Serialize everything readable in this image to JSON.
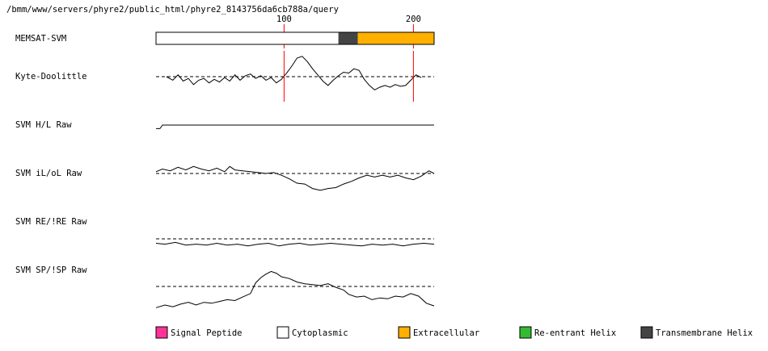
{
  "path_text": "/bmm/www/servers/phyre2/public_html/phyre2_8143756da6cb788a/query",
  "colors": {
    "signal": "#ff3399",
    "cytoplasmic": "#ffffff",
    "extracellular": "#ffb000",
    "reentrant": "#33bb33",
    "transmembrane": "#444444",
    "marker": "#ff0000",
    "line": "#000000"
  },
  "chart_data": {
    "type": "line",
    "sequence_length": 216,
    "ruler_ticks": [
      {
        "label": "100",
        "pos": 100
      },
      {
        "label": "200",
        "pos": 200
      }
    ],
    "memsat": {
      "label": "MEMSAT-SVM",
      "segments": [
        {
          "type": "cytoplasmic",
          "start": 1,
          "end": 142
        },
        {
          "type": "transmembrane",
          "start": 142,
          "end": 157
        },
        {
          "type": "extracellular",
          "start": 157,
          "end": 216
        }
      ]
    },
    "tracks": [
      {
        "label": "Kyte-Doolittle",
        "range": [
          -1.6,
          1.6
        ],
        "start": 9,
        "end": 206,
        "dashed_zero": true,
        "markers": [
          100,
          200
        ],
        "points": [
          [
            9,
            0
          ],
          [
            14,
            -0.2
          ],
          [
            18,
            0.1
          ],
          [
            22,
            -0.25
          ],
          [
            26,
            -0.1
          ],
          [
            30,
            -0.45
          ],
          [
            34,
            -0.2
          ],
          [
            38,
            -0.1
          ],
          [
            42,
            -0.35
          ],
          [
            46,
            -0.15
          ],
          [
            50,
            -0.3
          ],
          [
            54,
            -0.05
          ],
          [
            58,
            -0.25
          ],
          [
            62,
            0.1
          ],
          [
            66,
            -0.2
          ],
          [
            70,
            0.05
          ],
          [
            74,
            0.15
          ],
          [
            78,
            -0.1
          ],
          [
            82,
            0.05
          ],
          [
            86,
            -0.2
          ],
          [
            90,
            -0.05
          ],
          [
            94,
            -0.35
          ],
          [
            98,
            -0.15
          ],
          [
            102,
            0.2
          ],
          [
            106,
            0.6
          ],
          [
            110,
            1.05
          ],
          [
            114,
            1.15
          ],
          [
            118,
            0.85
          ],
          [
            122,
            0.45
          ],
          [
            126,
            0.1
          ],
          [
            130,
            -0.25
          ],
          [
            134,
            -0.5
          ],
          [
            138,
            -0.2
          ],
          [
            142,
            0.05
          ],
          [
            146,
            0.25
          ],
          [
            150,
            0.2
          ],
          [
            154,
            0.45
          ],
          [
            158,
            0.35
          ],
          [
            162,
            -0.15
          ],
          [
            166,
            -0.5
          ],
          [
            170,
            -0.75
          ],
          [
            174,
            -0.6
          ],
          [
            178,
            -0.5
          ],
          [
            182,
            -0.6
          ],
          [
            186,
            -0.45
          ],
          [
            190,
            -0.55
          ],
          [
            194,
            -0.5
          ],
          [
            198,
            -0.2
          ],
          [
            202,
            0.1
          ],
          [
            206,
            -0.05
          ]
        ]
      },
      {
        "label": "SVM H/L Raw",
        "range": [
          -1.6,
          1.6
        ],
        "start": 1,
        "end": 216,
        "dashed_zero": false,
        "markers": [],
        "points": [
          [
            1,
            -0.2
          ],
          [
            4,
            -0.2
          ],
          [
            6,
            0
          ],
          [
            30,
            0
          ],
          [
            216,
            0
          ]
        ]
      },
      {
        "label": "SVM iL/oL Raw",
        "range": [
          -1.6,
          1.6
        ],
        "start": 1,
        "end": 216,
        "dashed_zero": true,
        "markers": [],
        "points": [
          [
            1,
            0.1
          ],
          [
            6,
            0.25
          ],
          [
            12,
            0.15
          ],
          [
            18,
            0.35
          ],
          [
            24,
            0.2
          ],
          [
            30,
            0.4
          ],
          [
            36,
            0.25
          ],
          [
            42,
            0.15
          ],
          [
            48,
            0.3
          ],
          [
            54,
            0.1
          ],
          [
            58,
            0.4
          ],
          [
            62,
            0.2
          ],
          [
            68,
            0.15
          ],
          [
            74,
            0.1
          ],
          [
            80,
            0.05
          ],
          [
            86,
            0
          ],
          [
            92,
            0.05
          ],
          [
            98,
            -0.1
          ],
          [
            104,
            -0.3
          ],
          [
            110,
            -0.55
          ],
          [
            116,
            -0.6
          ],
          [
            122,
            -0.85
          ],
          [
            128,
            -0.95
          ],
          [
            134,
            -0.85
          ],
          [
            140,
            -0.8
          ],
          [
            146,
            -0.6
          ],
          [
            152,
            -0.45
          ],
          [
            158,
            -0.25
          ],
          [
            164,
            -0.1
          ],
          [
            170,
            -0.2
          ],
          [
            176,
            -0.1
          ],
          [
            182,
            -0.2
          ],
          [
            188,
            -0.1
          ],
          [
            194,
            -0.25
          ],
          [
            200,
            -0.35
          ],
          [
            206,
            -0.15
          ],
          [
            212,
            0.15
          ],
          [
            216,
            0
          ]
        ]
      },
      {
        "label": "SVM RE/!RE Raw",
        "range": [
          -1.6,
          1.6
        ],
        "start": 1,
        "end": 216,
        "dashed_zero": true,
        "markers": [],
        "points": [
          [
            1,
            -0.25
          ],
          [
            8,
            -0.3
          ],
          [
            16,
            -0.2
          ],
          [
            24,
            -0.35
          ],
          [
            32,
            -0.3
          ],
          [
            40,
            -0.35
          ],
          [
            48,
            -0.25
          ],
          [
            56,
            -0.35
          ],
          [
            64,
            -0.3
          ],
          [
            72,
            -0.4
          ],
          [
            80,
            -0.3
          ],
          [
            88,
            -0.25
          ],
          [
            96,
            -0.4
          ],
          [
            104,
            -0.3
          ],
          [
            112,
            -0.25
          ],
          [
            120,
            -0.35
          ],
          [
            128,
            -0.3
          ],
          [
            136,
            -0.25
          ],
          [
            144,
            -0.3
          ],
          [
            152,
            -0.35
          ],
          [
            160,
            -0.4
          ],
          [
            168,
            -0.3
          ],
          [
            176,
            -0.35
          ],
          [
            184,
            -0.3
          ],
          [
            192,
            -0.4
          ],
          [
            200,
            -0.3
          ],
          [
            208,
            -0.25
          ],
          [
            216,
            -0.3
          ]
        ]
      },
      {
        "label": "SVM SP/!SP Raw",
        "range": [
          -1.6,
          1.6
        ],
        "start": 1,
        "end": 216,
        "dashed_zero": true,
        "markers": [],
        "points": [
          [
            1,
            -1.2
          ],
          [
            8,
            -1.05
          ],
          [
            14,
            -1.15
          ],
          [
            20,
            -1.0
          ],
          [
            26,
            -0.9
          ],
          [
            32,
            -1.05
          ],
          [
            38,
            -0.9
          ],
          [
            44,
            -0.95
          ],
          [
            50,
            -0.85
          ],
          [
            56,
            -0.75
          ],
          [
            62,
            -0.8
          ],
          [
            68,
            -0.6
          ],
          [
            74,
            -0.4
          ],
          [
            78,
            0.2
          ],
          [
            82,
            0.5
          ],
          [
            86,
            0.7
          ],
          [
            90,
            0.85
          ],
          [
            94,
            0.75
          ],
          [
            98,
            0.55
          ],
          [
            104,
            0.45
          ],
          [
            110,
            0.25
          ],
          [
            116,
            0.15
          ],
          [
            122,
            0.1
          ],
          [
            128,
            0.05
          ],
          [
            134,
            0.15
          ],
          [
            140,
            -0.05
          ],
          [
            146,
            -0.2
          ],
          [
            150,
            -0.45
          ],
          [
            156,
            -0.6
          ],
          [
            162,
            -0.55
          ],
          [
            168,
            -0.75
          ],
          [
            174,
            -0.65
          ],
          [
            180,
            -0.7
          ],
          [
            186,
            -0.55
          ],
          [
            192,
            -0.6
          ],
          [
            198,
            -0.4
          ],
          [
            204,
            -0.55
          ],
          [
            210,
            -0.95
          ],
          [
            216,
            -1.1
          ]
        ]
      }
    ]
  },
  "legend": [
    {
      "label": "Signal Peptide",
      "color": "#ff3399"
    },
    {
      "label": "Cytoplasmic",
      "color": "#ffffff"
    },
    {
      "label": "Extracellular",
      "color": "#ffb000"
    },
    {
      "label": "Re-entrant Helix",
      "color": "#33bb33"
    },
    {
      "label": "Transmembrane Helix",
      "color": "#444444"
    }
  ]
}
